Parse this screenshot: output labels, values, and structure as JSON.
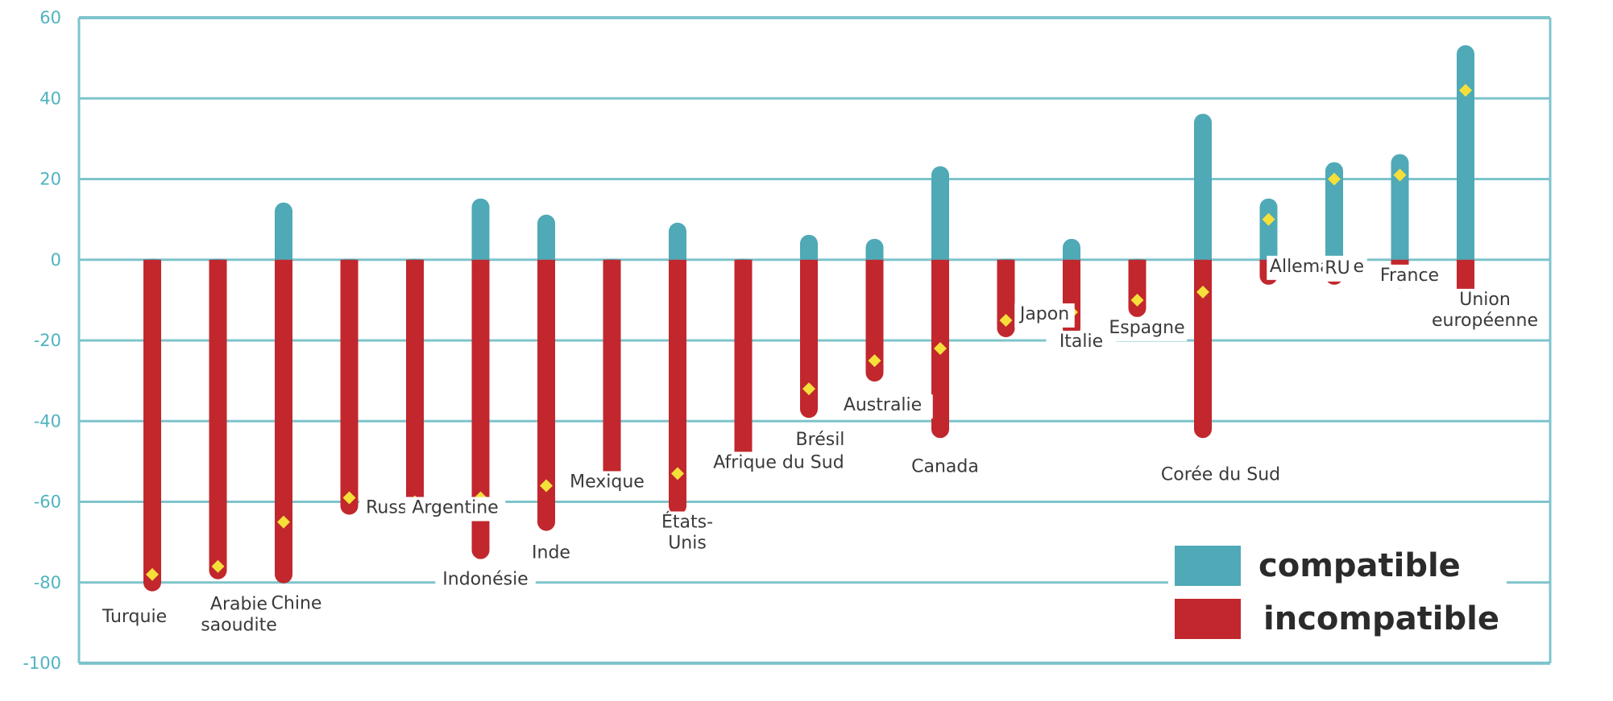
{
  "chart_data": {
    "type": "bar",
    "title": "",
    "xlabel": "",
    "ylabel": "",
    "ylim": [
      -100,
      60
    ],
    "yticks": [
      60,
      40,
      20,
      0,
      -20,
      -40,
      -60,
      -80,
      -100
    ],
    "grid": true,
    "legend_position": "bottom-right",
    "colors": {
      "compatible": "#4fa9b6",
      "incompatible": "#c1272d",
      "marker": "#f5e03a",
      "grid": "#7ec4cc"
    },
    "categories": [
      [
        "Turquie"
      ],
      [
        "Arabie",
        "saoudite"
      ],
      [
        "Chine"
      ],
      [
        "Russie"
      ],
      [
        "Argentine"
      ],
      [
        "Indonésie"
      ],
      [
        "Inde"
      ],
      [
        "Mexique"
      ],
      [
        "États-",
        "Unis"
      ],
      [
        "Afrique du Sud"
      ],
      [
        "Brésil"
      ],
      [
        "Australie"
      ],
      [
        "Canada"
      ],
      [
        "Japon"
      ],
      [
        "Italie"
      ],
      [
        "Espagne"
      ],
      [
        "Corée du Sud"
      ],
      [
        "Allemagne"
      ],
      [
        "RU"
      ],
      [
        "France"
      ],
      [
        "Union",
        "européenne"
      ]
    ],
    "series": [
      {
        "name": "compatible",
        "values": [
          0,
          0,
          12,
          0,
          0,
          13,
          9,
          0,
          7,
          0,
          4,
          3,
          21,
          0,
          3,
          0,
          34,
          13,
          22,
          24,
          51
        ]
      },
      {
        "name": "incompatible",
        "values": [
          -80,
          -77,
          -78,
          -61,
          -61,
          -72,
          -65,
          -55,
          -61,
          -51,
          -37,
          -28,
          -42,
          -17,
          -17,
          -12,
          -42,
          -4,
          -4,
          -5,
          -9
        ]
      }
    ],
    "net": [
      -78,
      -76,
      -65,
      -59,
      -60,
      -59,
      -56,
      -54,
      -53,
      -50,
      -32,
      -25,
      -22,
      -15,
      -13,
      -10,
      -8,
      10,
      20,
      21,
      42
    ]
  }
}
